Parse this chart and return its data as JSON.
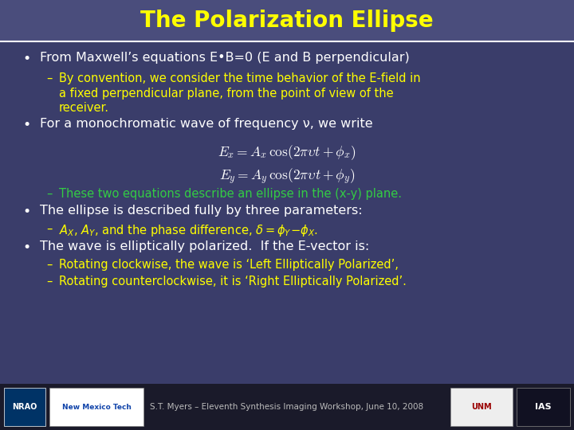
{
  "title": "The Polarization Ellipse",
  "title_color": "#FFFF00",
  "title_fontsize": 20,
  "header_bg": "#4A4D7C",
  "body_bg": "#3A3D6A",
  "footer_bg": "#1A1A2A",
  "white_text": "#FFFFFF",
  "yellow_text": "#FFFF00",
  "green_text": "#33CC44",
  "gray_text": "#BBBBBB",
  "body_fontsize": 11.5,
  "sub_fontsize": 10.5,
  "footer_text": "S.T. Myers – Eleventh Synthesis Imaging Workshop, June 10, 2008",
  "eq1": "$E_x = A_x \\cos(2\\pi\\upsilon t + \\phi_x)$",
  "eq2": "$E_y = A_y \\cos(2\\pi\\upsilon t + \\phi_y)$"
}
